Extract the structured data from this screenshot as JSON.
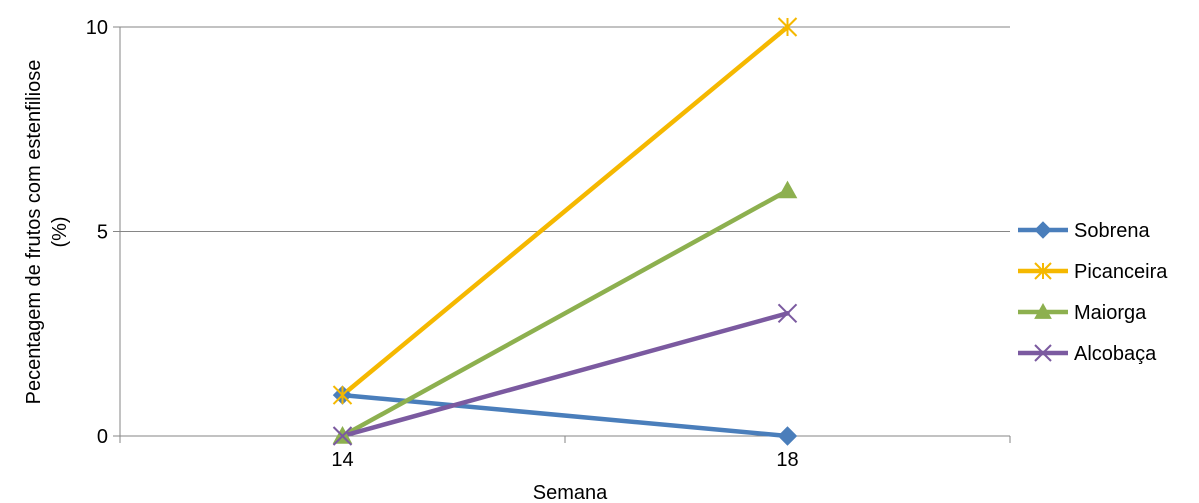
{
  "chart_data": {
    "type": "line",
    "title": "",
    "xlabel": "Semana",
    "ylabel_lines": [
      "Pecentagem de frutos com estenfiliose",
      "(%)"
    ],
    "categories": [
      "14",
      "18"
    ],
    "ylim": [
      0,
      10
    ],
    "yticks": [
      0,
      5,
      10
    ],
    "grid": true,
    "legend_position": "right",
    "series": [
      {
        "name": "Sobrena",
        "values": [
          1,
          0
        ],
        "color": "#4a7ebb",
        "marker": "diamond"
      },
      {
        "name": "Picanceira",
        "values": [
          1,
          10
        ],
        "color": "#f5b800",
        "marker": "asterisk"
      },
      {
        "name": "Maiorga",
        "values": [
          0,
          6
        ],
        "color": "#8db04f",
        "marker": "triangle"
      },
      {
        "name": "Alcobaça",
        "values": [
          0,
          3
        ],
        "color": "#7b5aa0",
        "marker": "x"
      }
    ]
  }
}
